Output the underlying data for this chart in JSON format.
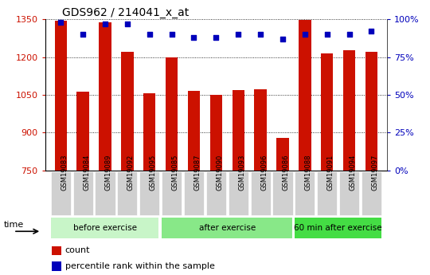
{
  "title": "GDS962 / 214041_x_at",
  "categories": [
    "GSM19083",
    "GSM19084",
    "GSM19089",
    "GSM19092",
    "GSM19095",
    "GSM19085",
    "GSM19087",
    "GSM19090",
    "GSM19093",
    "GSM19096",
    "GSM19086",
    "GSM19088",
    "GSM19091",
    "GSM19094",
    "GSM19097"
  ],
  "counts": [
    1345,
    1063,
    1338,
    1221,
    1055,
    1200,
    1065,
    1050,
    1068,
    1073,
    878,
    1347,
    1213,
    1227,
    1221
  ],
  "percentile_ranks": [
    98,
    90,
    97,
    97,
    90,
    90,
    88,
    88,
    90,
    90,
    87,
    90,
    90,
    90,
    92
  ],
  "groups": [
    {
      "label": "before exercise",
      "start": 0,
      "end": 5
    },
    {
      "label": "after exercise",
      "start": 5,
      "end": 11
    },
    {
      "label": "60 min after exercise",
      "start": 11,
      "end": 15
    }
  ],
  "ylim_left": [
    750,
    1350
  ],
  "ylim_right": [
    0,
    100
  ],
  "bar_color": "#cc1100",
  "dot_color": "#0000bb",
  "group_bg_colors": [
    "#c8f5c8",
    "#88e888",
    "#44dd44"
  ],
  "left_ytick_color": "#cc1100",
  "right_ytick_color": "#0000bb",
  "left_yticks": [
    750,
    900,
    1050,
    1200,
    1350
  ],
  "right_yticks": [
    0,
    25,
    50,
    75,
    100
  ],
  "right_ytick_labels": [
    "0%",
    "25%",
    "50%",
    "75%",
    "100%"
  ]
}
